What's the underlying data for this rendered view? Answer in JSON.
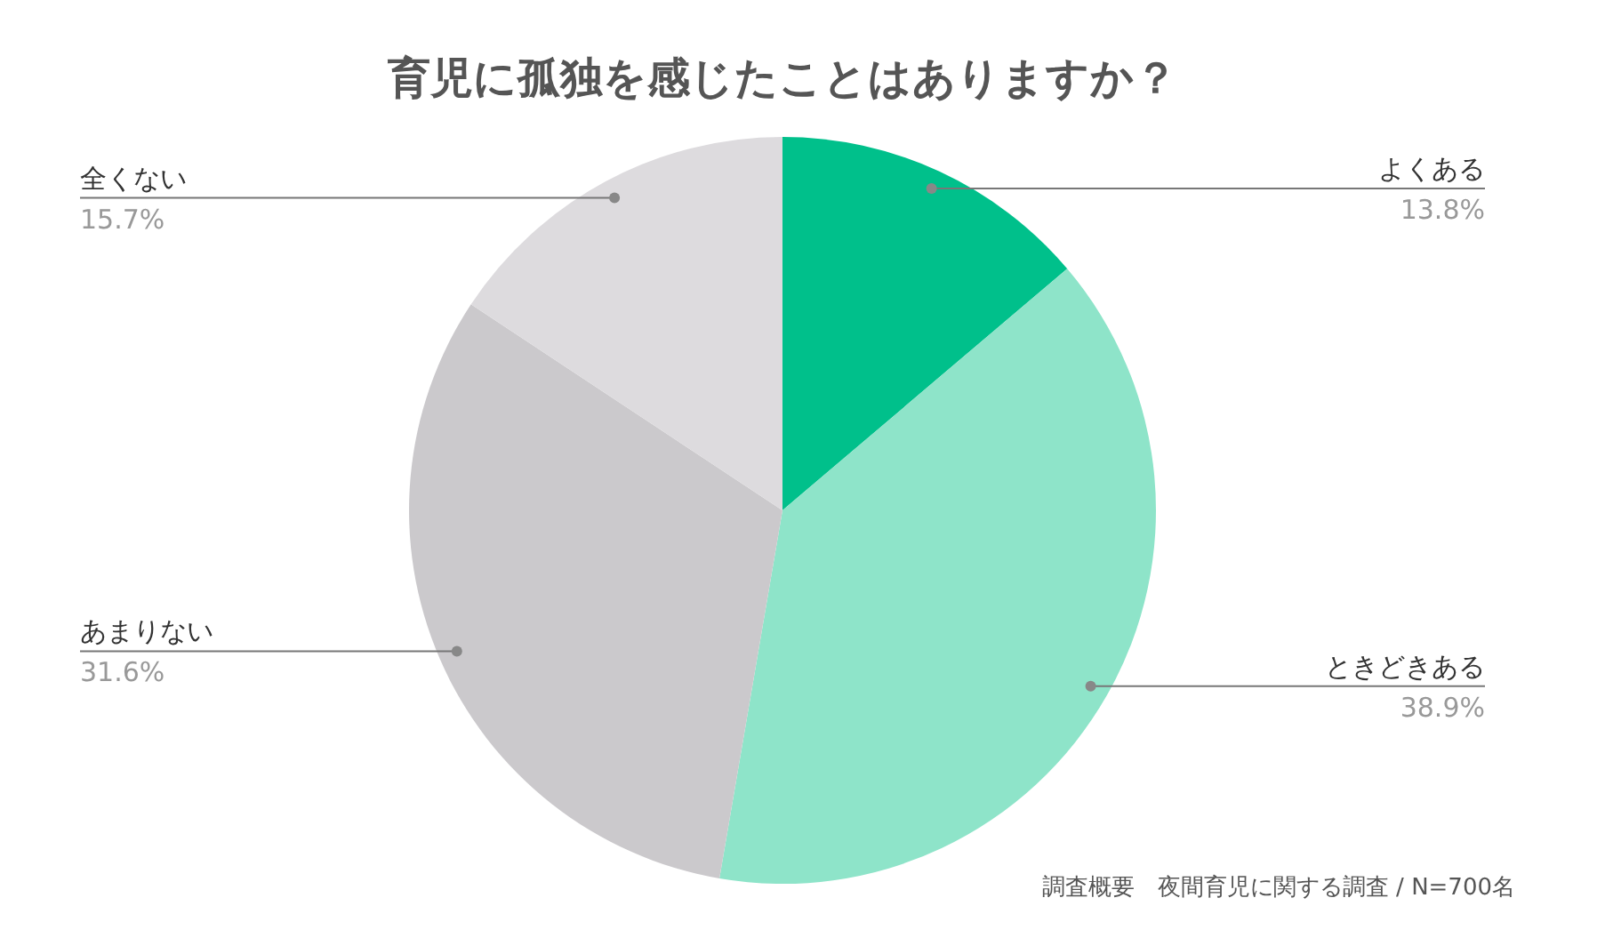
{
  "chart_data": {
    "type": "pie",
    "title": "育児に孤独を感じたことはありますか？",
    "categories": [
      "よくある",
      "ときどきある",
      "あまりない",
      "全くない"
    ],
    "values": [
      13.8,
      38.9,
      31.6,
      15.7
    ],
    "value_labels": [
      "13.8%",
      "38.9%",
      "31.6%",
      "15.7%"
    ],
    "colors": [
      "#00c08b",
      "#8ee4c9",
      "#cbc9cc",
      "#dddbde"
    ],
    "annotations": [
      "調査概要　夜間育児に関する調査 / N=700名"
    ]
  }
}
